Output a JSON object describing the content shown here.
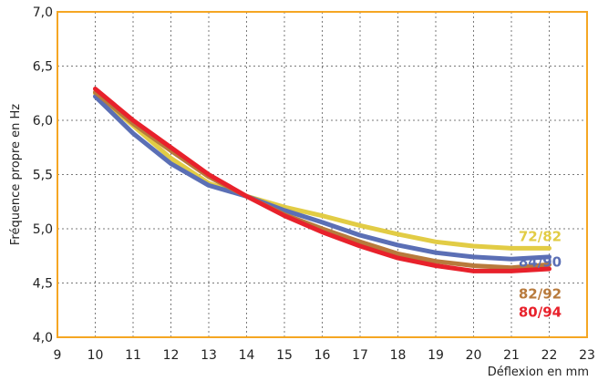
{
  "chart_data": {
    "type": "line",
    "xlabel": "Déflexion en mm",
    "ylabel": "Fréquence propre en Hz",
    "xlim": [
      9,
      23
    ],
    "ylim": [
      4.0,
      7.0
    ],
    "x_ticks": [
      "9",
      "10",
      "11",
      "12",
      "13",
      "14",
      "15",
      "16",
      "17",
      "18",
      "19",
      "20",
      "21",
      "22",
      "23"
    ],
    "y_ticks": [
      "4,0",
      "4,5",
      "5,0",
      "5,5",
      "6,0",
      "6,5",
      "7,0"
    ],
    "grid": true,
    "frame_color": "#f5a623",
    "x": [
      10,
      11,
      12,
      13,
      14,
      15,
      16,
      17,
      18,
      19,
      20,
      21,
      22
    ],
    "series": [
      {
        "name": "72/82",
        "color": "#e2cc45",
        "values": [
          6.25,
          5.95,
          5.65,
          5.42,
          5.3,
          5.2,
          5.12,
          5.03,
          4.95,
          4.88,
          4.84,
          4.82,
          4.82
        ]
      },
      {
        "name": "84/90",
        "color": "#5b6fb5",
        "values": [
          6.22,
          5.88,
          5.6,
          5.4,
          5.3,
          5.17,
          5.06,
          4.94,
          4.85,
          4.78,
          4.74,
          4.72,
          4.74
        ]
      },
      {
        "name": "82/92",
        "color": "#b87a3c",
        "values": [
          6.26,
          5.97,
          5.72,
          5.48,
          5.3,
          5.13,
          5.0,
          4.88,
          4.77,
          4.7,
          4.66,
          4.64,
          4.67
        ]
      },
      {
        "name": "80/94",
        "color": "#e8212b",
        "values": [
          6.29,
          6.0,
          5.75,
          5.5,
          5.3,
          5.12,
          4.97,
          4.84,
          4.73,
          4.66,
          4.61,
          4.61,
          4.63
        ]
      }
    ]
  }
}
